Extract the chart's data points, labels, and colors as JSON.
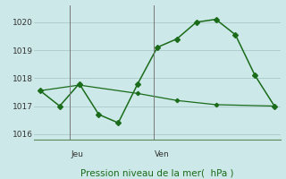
{
  "line1_x": [
    0,
    1,
    2,
    3,
    4,
    5,
    6,
    7,
    8,
    9,
    10,
    11,
    12
  ],
  "line1_y": [
    1017.55,
    1017.0,
    1017.8,
    1016.7,
    1016.4,
    1017.8,
    1019.1,
    1019.4,
    1020.0,
    1020.1,
    1019.55,
    1018.1,
    1017.0
  ],
  "line2_x": [
    0,
    2,
    5,
    7,
    9,
    12
  ],
  "line2_y": [
    1017.55,
    1017.75,
    1017.45,
    1017.2,
    1017.05,
    1017.0
  ],
  "line_color": "#1a6b1a",
  "bg_color": "#cce8e8",
  "grid_color": "#aacaca",
  "ylim": [
    1015.8,
    1020.6
  ],
  "yticks": [
    1016,
    1017,
    1018,
    1019,
    1020
  ],
  "xlim": [
    -0.3,
    12.3
  ],
  "jeu_x": 1.5,
  "ven_x": 5.8,
  "jeu_label": "Jeu",
  "ven_label": "Ven",
  "xlabel": "Pression niveau de la mer(  hPa )",
  "tick_fontsize": 6.5,
  "label_fontsize": 7.5
}
